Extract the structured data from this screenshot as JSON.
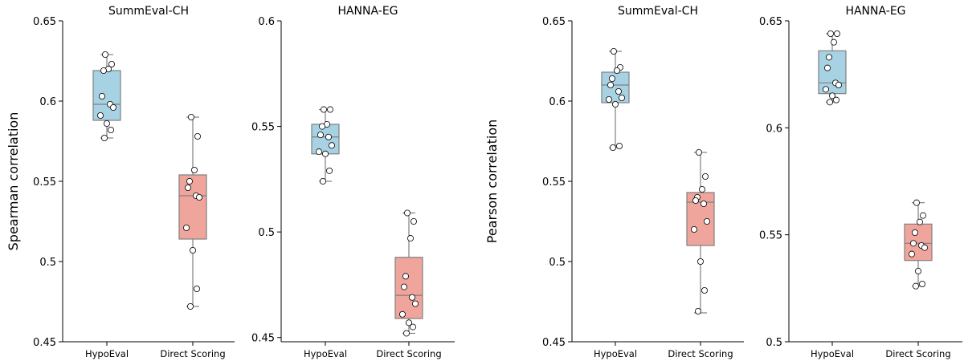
{
  "colors": {
    "hypoeval": "#a6d2e3",
    "direct": "#f0a59c",
    "edge": "#808080",
    "point_fill": "#ffffff",
    "point_edge": "#000000"
  },
  "chart_data": [
    {
      "type": "box",
      "title": "SummEval-CH",
      "ylabel": "Spearman correlation",
      "ylim": [
        0.45,
        0.65
      ],
      "yticks": [
        "0.45",
        "0.5",
        "0.55",
        "0.6",
        "0.65"
      ],
      "categories": [
        "HypoEval",
        "Direct Scoring"
      ],
      "series": [
        {
          "name": "HypoEval",
          "box": {
            "whisker_low": 0.577,
            "q1": 0.588,
            "median": 0.598,
            "q3": 0.619,
            "whisker_high": 0.629
          },
          "points": [
            0.629,
            0.623,
            0.62,
            0.619,
            0.603,
            0.598,
            0.596,
            0.591,
            0.586,
            0.582,
            0.577
          ]
        },
        {
          "name": "Direct Scoring",
          "box": {
            "whisker_low": 0.472,
            "q1": 0.514,
            "median": 0.541,
            "q3": 0.554,
            "whisker_high": 0.59
          },
          "points": [
            0.59,
            0.578,
            0.557,
            0.55,
            0.546,
            0.541,
            0.54,
            0.521,
            0.507,
            0.483,
            0.472
          ]
        }
      ]
    },
    {
      "type": "box",
      "title": "HANNA-EG",
      "ylabel": "",
      "ylim": [
        0.448,
        0.6
      ],
      "yticks": [
        "0.45",
        "0.5",
        "0.55",
        "0.6"
      ],
      "categories": [
        "HypoEval",
        "Direct Scoring"
      ],
      "series": [
        {
          "name": "HypoEval",
          "box": {
            "whisker_low": 0.524,
            "q1": 0.537,
            "median": 0.545,
            "q3": 0.551,
            "whisker_high": 0.558
          },
          "points": [
            0.558,
            0.558,
            0.551,
            0.55,
            0.546,
            0.545,
            0.541,
            0.538,
            0.537,
            0.529,
            0.524
          ]
        },
        {
          "name": "Direct Scoring",
          "box": {
            "whisker_low": 0.452,
            "q1": 0.459,
            "median": 0.47,
            "q3": 0.488,
            "whisker_high": 0.509
          },
          "points": [
            0.509,
            0.505,
            0.497,
            0.479,
            0.474,
            0.469,
            0.466,
            0.461,
            0.457,
            0.455,
            0.452
          ]
        }
      ]
    },
    {
      "type": "box",
      "title": "SummEval-CH",
      "ylabel": "Pearson correlation",
      "ylim": [
        0.45,
        0.65
      ],
      "yticks": [
        "0.45",
        "0.5",
        "0.55",
        "0.6",
        "0.65"
      ],
      "categories": [
        "HypoEval",
        "Direct Scoring"
      ],
      "series": [
        {
          "name": "HypoEval",
          "box": {
            "whisker_low": 0.571,
            "q1": 0.599,
            "median": 0.61,
            "q3": 0.618,
            "whisker_high": 0.631
          },
          "points": [
            0.631,
            0.621,
            0.619,
            0.614,
            0.61,
            0.606,
            0.602,
            0.601,
            0.598,
            0.572,
            0.571
          ]
        },
        {
          "name": "Direct Scoring",
          "box": {
            "whisker_low": 0.468,
            "q1": 0.51,
            "median": 0.537,
            "q3": 0.543,
            "whisker_high": 0.568
          },
          "points": [
            0.568,
            0.553,
            0.545,
            0.54,
            0.538,
            0.536,
            0.525,
            0.52,
            0.5,
            0.482,
            0.469
          ]
        }
      ]
    },
    {
      "type": "box",
      "title": "HANNA-EG",
      "ylabel": "",
      "ylim": [
        0.5,
        0.65
      ],
      "yticks": [
        "0.5",
        "0.55",
        "0.6",
        "0.65"
      ],
      "categories": [
        "HypoEval",
        "Direct Scoring"
      ],
      "series": [
        {
          "name": "HypoEval",
          "box": {
            "whisker_low": 0.612,
            "q1": 0.616,
            "median": 0.621,
            "q3": 0.636,
            "whisker_high": 0.644
          },
          "points": [
            0.644,
            0.644,
            0.64,
            0.633,
            0.628,
            0.621,
            0.62,
            0.618,
            0.615,
            0.613,
            0.612
          ]
        },
        {
          "name": "Direct Scoring",
          "box": {
            "whisker_low": 0.526,
            "q1": 0.538,
            "median": 0.546,
            "q3": 0.555,
            "whisker_high": 0.565
          },
          "points": [
            0.565,
            0.559,
            0.556,
            0.551,
            0.546,
            0.545,
            0.544,
            0.541,
            0.533,
            0.527,
            0.526
          ]
        }
      ]
    }
  ]
}
